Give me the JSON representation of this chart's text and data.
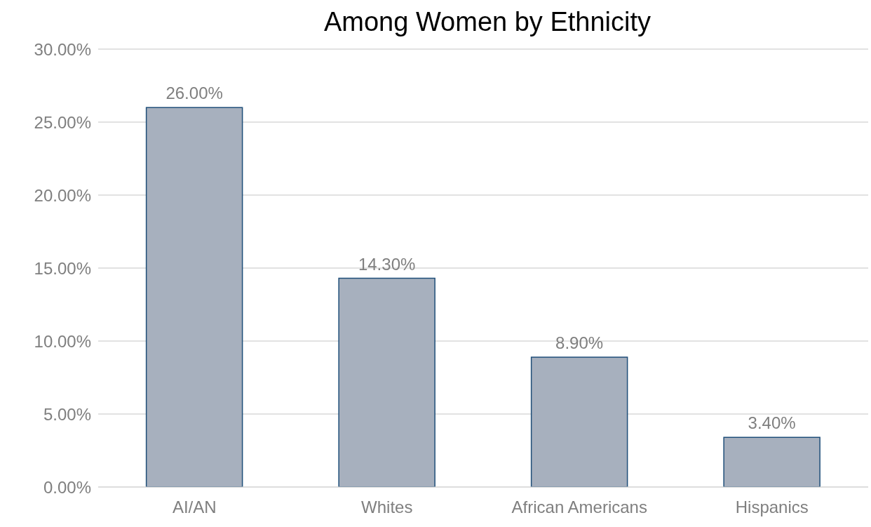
{
  "chart_data": {
    "type": "bar",
    "title": "Among Women by Ethnicity",
    "categories": [
      "AI/AN",
      "Whites",
      "African Americans",
      "Hispanics"
    ],
    "values": [
      26,
      14.3,
      8.9,
      3.4
    ],
    "value_labels": [
      "26.00%",
      "14.30%",
      "8.90%",
      "3.40%"
    ],
    "color": "#a7b0be",
    "ylim": [
      0,
      30
    ],
    "yticks": [
      {
        "value": 0,
        "label": "0.00%"
      },
      {
        "value": 5,
        "label": "5.00%"
      },
      {
        "value": 10,
        "label": "10.00%"
      },
      {
        "value": 15,
        "label": "15.00%"
      },
      {
        "value": 20,
        "label": "20.00%"
      },
      {
        "value": 25,
        "label": "25.00%"
      },
      {
        "value": 30,
        "label": "30.00%"
      }
    ],
    "grid": "y"
  }
}
